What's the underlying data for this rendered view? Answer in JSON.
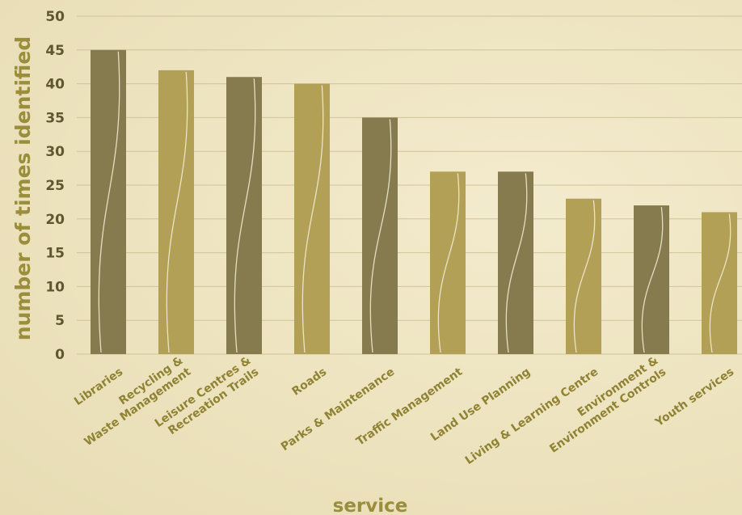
{
  "chart_data": {
    "type": "bar",
    "title": "",
    "xlabel": "service",
    "ylabel": "number of times identified",
    "ylim": [
      0,
      50
    ],
    "yticks": [
      0,
      5,
      10,
      15,
      20,
      25,
      30,
      35,
      40,
      45,
      50
    ],
    "grid": true,
    "categories": [
      [
        "Libraries"
      ],
      [
        "Recycling &",
        "Waste Management"
      ],
      [
        "Leisure Centres &",
        "Recreation Trails"
      ],
      [
        "Roads"
      ],
      [
        "Parks & Maintenance"
      ],
      [
        "Traffic Management"
      ],
      [
        "Land Use Planning"
      ],
      [
        "Living & Learning Centre"
      ],
      [
        "Environment &",
        "Environment Controls"
      ],
      [
        "Youth services"
      ]
    ],
    "values": [
      45,
      42,
      41,
      40,
      35,
      27,
      27,
      23,
      22,
      21
    ],
    "colors": [
      "#857b4e",
      "#b2a056",
      "#857b4e",
      "#b2a056",
      "#857b4e",
      "#b2a056",
      "#857b4e",
      "#b2a056",
      "#857b4e",
      "#b2a056"
    ],
    "grid_color": "#cfc39a",
    "tick_color": "#5e5730",
    "label_color": "#8f8333"
  }
}
